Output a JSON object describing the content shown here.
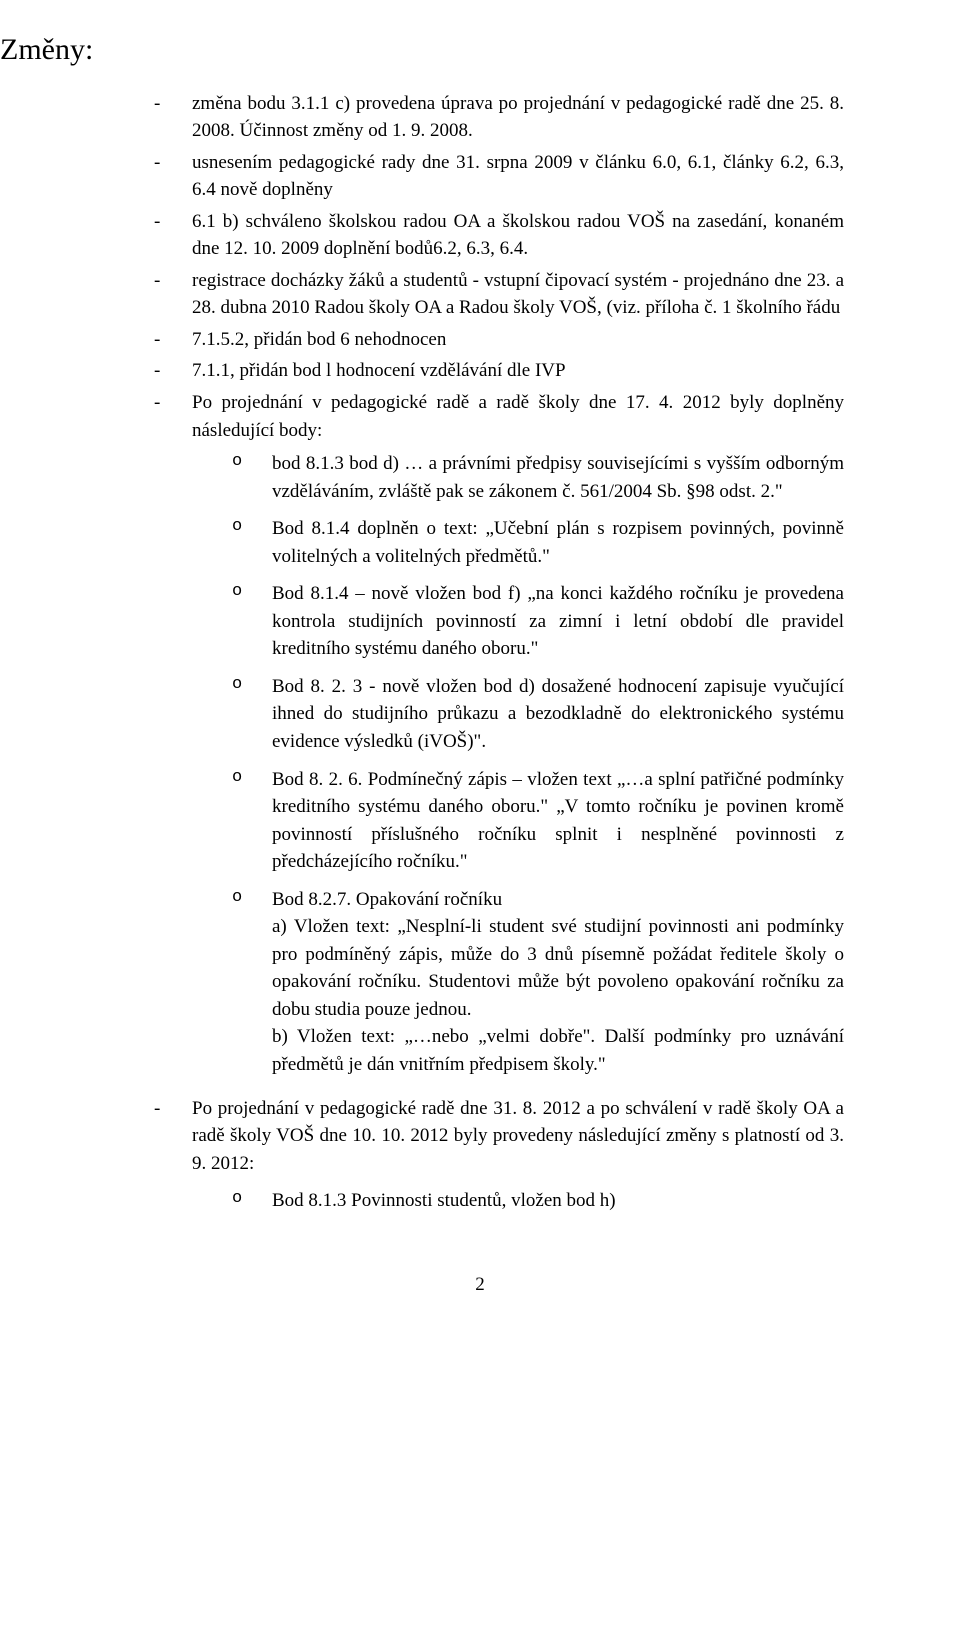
{
  "heading": "Změny:",
  "items": [
    {
      "text": "změna bodu 3.1.1 c) provedena úprava po projednání v pedagogické radě dne 25. 8. 2008. Účinnost změny od 1. 9. 2008."
    },
    {
      "text": "usnesením pedagogické rady dne 31. srpna 2009 v článku 6.0, 6.1, články 6.2, 6.3, 6.4 nově doplněny"
    },
    {
      "text": "6.1 b) schváleno školskou radou OA a školskou radou VOŠ na zasedání, konaném dne 12. 10. 2009 doplnění bodů6.2, 6.3, 6.4."
    },
    {
      "text": "registrace docházky žáků a studentů - vstupní čipovací systém - projednáno dne 23. a 28. dubna 2010 Radou školy OA a Radou školy VOŠ, (viz. příloha č. 1 školního řádu"
    },
    {
      "text": "7.1.5.2, přidán bod 6 nehodnocen"
    },
    {
      "text": "7.1.1, přidán bod l hodnocení vzdělávání dle IVP"
    },
    {
      "text": "Po projednání v pedagogické radě a radě školy dne 17. 4. 2012 byly doplněny následující body:",
      "sub": [
        {
          "text": " bod 8.1.3 bod d) … a právními předpisy souvisejícími s vyšším odborným vzděláváním, zvláště pak se zákonem č. 561/2004 Sb. §98 odst. 2.\""
        },
        {
          "text": "Bod 8.1.4 doplněn o text: „Učební plán s rozpisem povinných, povinně volitelných a volitelných předmětů.\""
        },
        {
          "text": "Bod 8.1.4 – nově vložen bod f) „na konci každého ročníku je provedena kontrola studijních povinností za zimní i letní období dle pravidel kreditního systému daného oboru.\""
        },
        {
          "text": "Bod 8. 2. 3 - nově vložen bod d) dosažené hodnocení zapisuje vyučující ihned do studijního průkazu a bezodkladně do elektronického systému evidence výsledků (iVOŠ)\"."
        },
        {
          "text": "Bod 8. 2. 6. Podmínečný zápis – vložen text „…a splní patřičné podmínky kreditního systému daného oboru.\" „V tomto ročníku je povinen kromě povinností příslušného ročníku splnit i nesplněné povinnosti z předcházejícího ročníku.\""
        },
        {
          "text": "Bod 8.2.7. Opakování ročníku",
          "a": "a) Vložen text: „Nesplní-li student své studijní povinnosti ani podmínky pro podmíněný zápis, může do 3 dnů písemně požádat ředitele školy o opakování ročníku. Studentovi může být povoleno opakování ročníku za dobu studia pouze jednou.",
          "b": "b) Vložen text: „…nebo „velmi dobře\". Další podmínky pro uznávání předmětů je dán vnitřním předpisem školy.\""
        }
      ]
    }
  ],
  "after": {
    "text": "Po projednání v pedagogické radě dne 31. 8. 2012 a po schválení v radě školy OA a radě školy VOŠ dne 10. 10. 2012 byly provedeny následující změny s platností od 3. 9. 2012:",
    "sub": "Bod 8.1.3 Povinnosti studentů, vložen bod h)"
  },
  "pagenum": "2"
}
